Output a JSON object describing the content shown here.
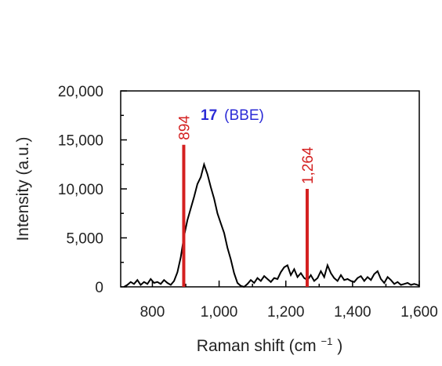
{
  "chart_data": {
    "type": "line",
    "xlabel": "Raman shift (cm",
    "xlabel_sup": "−1",
    "xlabel_end": ")",
    "ylabel": "Intensity (a.u.)",
    "xlim": [
      705,
      1600
    ],
    "ylim": [
      0,
      20000
    ],
    "x_ticks": [
      800,
      1000,
      1200,
      1400,
      1600
    ],
    "x_tick_labels": [
      "800",
      "1,000",
      "1,200",
      "1,400",
      "1,600"
    ],
    "y_ticks": [
      0,
      5000,
      10000,
      15000,
      20000
    ],
    "y_tick_labels": [
      "0",
      "5,000",
      "10,000",
      "15,000",
      "20,000"
    ],
    "annotation": {
      "number": "17",
      "name": "(BBE)",
      "color": "#2b2bd6"
    },
    "peaks": [
      {
        "x": 894,
        "height": 14500,
        "label": "894",
        "color": "#d42020"
      },
      {
        "x": 1264,
        "height": 10000,
        "label": "1,264",
        "color": "#d42020"
      }
    ],
    "series": [
      {
        "color": "#000000",
        "x": [
          715,
          725,
          735,
          745,
          755,
          765,
          775,
          785,
          795,
          805,
          815,
          825,
          835,
          845,
          855,
          865,
          875,
          885,
          895,
          905,
          915,
          925,
          935,
          945,
          955,
          965,
          975,
          985,
          995,
          1005,
          1015,
          1025,
          1035,
          1045,
          1055,
          1065,
          1075,
          1085,
          1095,
          1105,
          1115,
          1125,
          1135,
          1145,
          1155,
          1165,
          1175,
          1185,
          1195,
          1205,
          1215,
          1225,
          1235,
          1245,
          1255,
          1265,
          1275,
          1285,
          1295,
          1305,
          1315,
          1325,
          1335,
          1345,
          1355,
          1365,
          1375,
          1385,
          1395,
          1405,
          1415,
          1425,
          1435,
          1445,
          1455,
          1465,
          1475,
          1485,
          1495,
          1505,
          1515,
          1525,
          1535,
          1545,
          1555,
          1565,
          1575,
          1585,
          1595,
          1600
        ],
        "y": [
          0,
          200,
          500,
          300,
          700,
          200,
          500,
          300,
          800,
          400,
          500,
          300,
          700,
          400,
          200,
          600,
          1500,
          3000,
          5200,
          6800,
          8000,
          9200,
          10500,
          11200,
          12500,
          11500,
          10200,
          9000,
          7500,
          6500,
          5500,
          4000,
          2800,
          1400,
          400,
          100,
          0,
          300,
          700,
          400,
          900,
          600,
          1100,
          800,
          500,
          900,
          800,
          1500,
          2000,
          2200,
          1200,
          1800,
          1000,
          1400,
          900,
          700,
          1200,
          600,
          900,
          1600,
          1000,
          2200,
          1400,
          900,
          600,
          1200,
          700,
          800,
          600,
          500,
          900,
          1100,
          600,
          1000,
          700,
          1300,
          1600,
          800,
          400,
          1000,
          700,
          300,
          500,
          200,
          300,
          400,
          200,
          300,
          200,
          100
        ]
      }
    ]
  }
}
